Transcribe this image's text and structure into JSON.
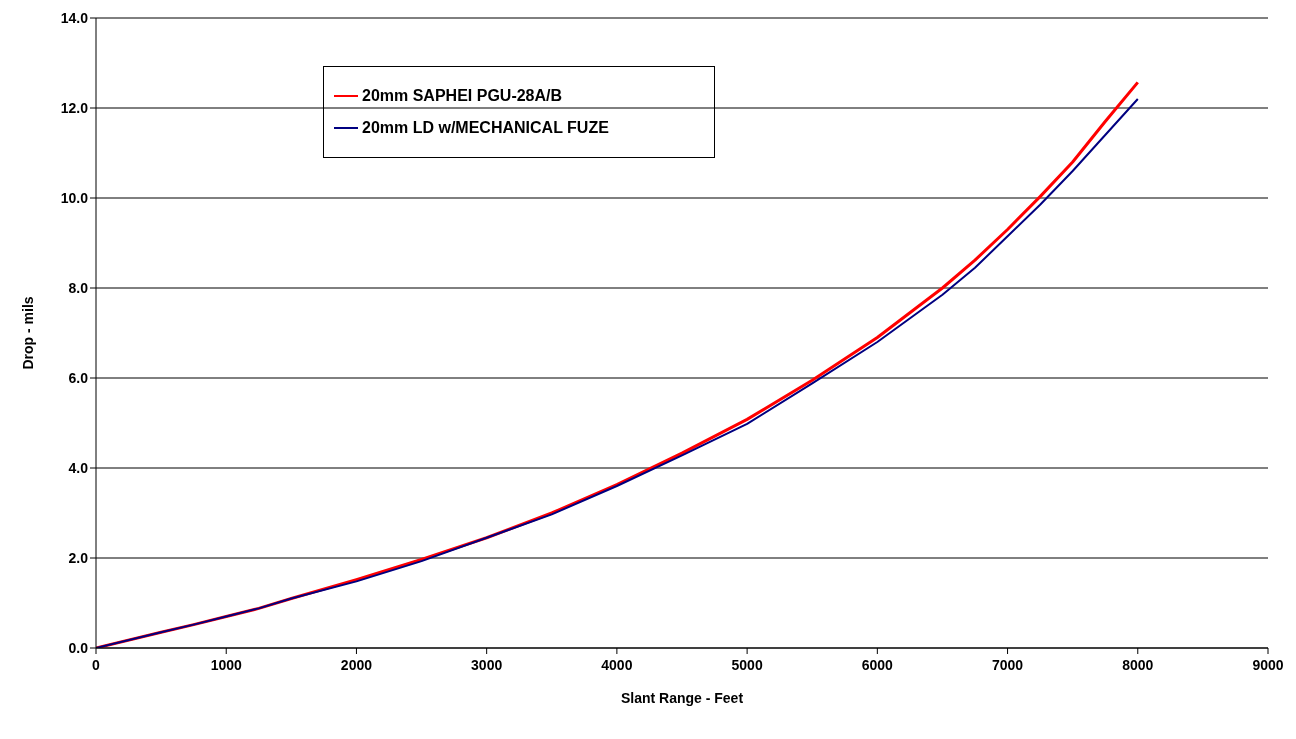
{
  "chart_data": {
    "type": "line",
    "xlabel": "Slant Range - Feet",
    "ylabel": "Drop - mils",
    "x": [
      0,
      500,
      750,
      1000,
      1250,
      1500,
      2000,
      2500,
      3000,
      3500,
      4000,
      4500,
      5000,
      5500,
      6000,
      6500,
      6750,
      7000,
      7250,
      7500,
      7750,
      8000
    ],
    "series": [
      {
        "name": "20mm SAPHEI PGU-28A/B",
        "color": "#ff0000",
        "values": [
          0,
          0.35,
          0.52,
          0.7,
          0.88,
          1.1,
          1.52,
          1.97,
          2.45,
          3.0,
          3.63,
          4.33,
          5.08,
          5.95,
          6.9,
          8.0,
          8.62,
          9.3,
          10.03,
          10.8,
          11.7,
          12.57
        ]
      },
      {
        "name": "20mm LD w/MECHANICAL FUZE",
        "color": "#000080",
        "values": [
          0,
          0.35,
          0.52,
          0.7,
          0.88,
          1.1,
          1.48,
          1.93,
          2.45,
          2.97,
          3.6,
          4.28,
          4.98,
          5.88,
          6.8,
          7.85,
          8.45,
          9.15,
          9.85,
          10.6,
          11.4,
          12.2
        ]
      }
    ],
    "xlim": [
      0,
      9000
    ],
    "xticks": [
      0,
      1000,
      2000,
      3000,
      4000,
      5000,
      6000,
      7000,
      8000,
      9000
    ],
    "ylim": [
      0,
      14
    ],
    "yticks": [
      {
        "value": 0,
        "label": "0.0"
      },
      {
        "value": 2,
        "label": "2.0"
      },
      {
        "value": 4,
        "label": "4.0"
      },
      {
        "value": 6,
        "label": "6.0"
      },
      {
        "value": 8,
        "label": "8.0"
      },
      {
        "value": 10,
        "label": "10.0"
      },
      {
        "value": 12,
        "label": "12.0"
      },
      {
        "value": 14,
        "label": "14.0"
      }
    ],
    "grid": "y",
    "legend": "top left",
    "marker": "none",
    "line_style": "solid"
  }
}
